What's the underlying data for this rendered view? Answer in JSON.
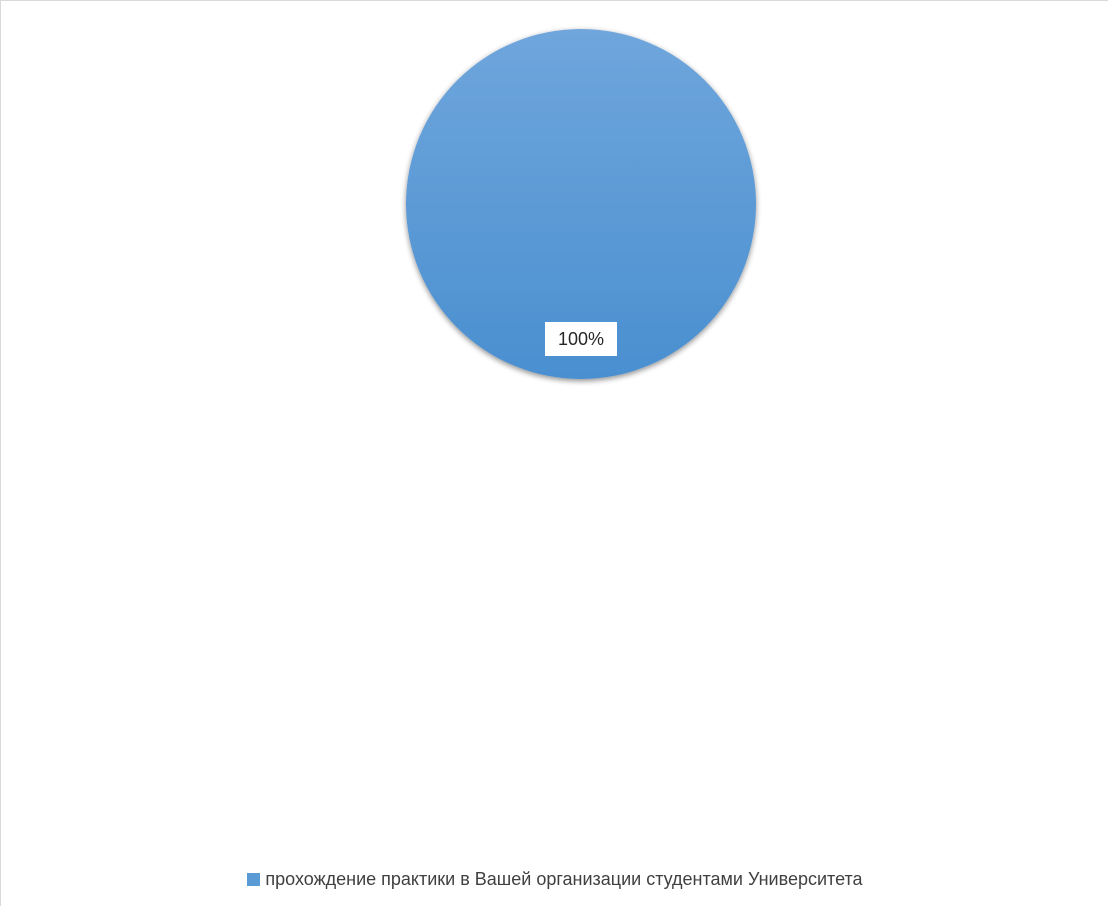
{
  "colors": {
    "slice_top": "#6fa6dc",
    "slice_bottom": "#4a8fd0",
    "slice_base": "#5b9bd5",
    "legend_swatch": "#5b9bd5"
  },
  "chart_data": {
    "type": "pie",
    "categories": [
      "прохождение практики в Вашей организации студентами Университета"
    ],
    "values": [
      100
    ],
    "data_labels": [
      "100%"
    ],
    "title": "",
    "legend_position": "bottom",
    "legend": [
      {
        "label": "прохождение практики в Вашей организации студентами Университета"
      }
    ]
  }
}
